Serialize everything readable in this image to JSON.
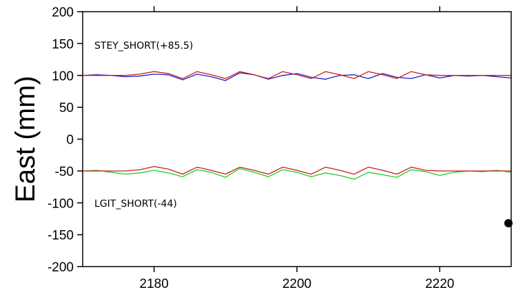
{
  "chart_data": {
    "type": "line",
    "title": "",
    "xlabel": "",
    "ylabel": "East (mm)",
    "xlim": [
      2170,
      2230
    ],
    "ylim": [
      -200,
      200
    ],
    "xticks": [
      2180,
      2200,
      2220
    ],
    "yticks": [
      200,
      150,
      100,
      50,
      0,
      -50,
      -100,
      -150,
      -200
    ],
    "grid": false,
    "annotations": [
      "STEY_SHORT(+85.5)",
      "LGIT_SHORT(-44)"
    ],
    "marker_point": {
      "x": 2230,
      "y": -132
    },
    "series": [
      {
        "color": "#1a1acc",
        "x": [
          2170,
          2172,
          2174,
          2176,
          2178,
          2180,
          2182,
          2184,
          2186,
          2188,
          2190,
          2192,
          2194,
          2196,
          2198,
          2200,
          2202,
          2204,
          2206,
          2208,
          2210,
          2212,
          2214,
          2216,
          2218,
          2220,
          2222,
          2224,
          2226,
          2228,
          2230
        ],
        "values": [
          100,
          101,
          100,
          98,
          99,
          102,
          101,
          93,
          102,
          98,
          92,
          104,
          101,
          94,
          100,
          103,
          97,
          94,
          100,
          101,
          95,
          103,
          97,
          95,
          101,
          96,
          100,
          99,
          100,
          98,
          96
        ]
      },
      {
        "color": "#cc1a1a",
        "x": [
          2170,
          2172,
          2174,
          2176,
          2178,
          2180,
          2182,
          2184,
          2186,
          2188,
          2190,
          2192,
          2194,
          2196,
          2198,
          2200,
          2202,
          2204,
          2206,
          2208,
          2210,
          2212,
          2214,
          2216,
          2218,
          2220,
          2222,
          2224,
          2226,
          2228,
          2230
        ],
        "values": [
          100,
          100,
          100,
          100,
          102,
          106,
          103,
          95,
          106,
          101,
          95,
          106,
          101,
          95,
          106,
          101,
          95,
          106,
          101,
          95,
          106,
          101,
          95,
          106,
          101,
          100,
          100,
          100,
          100,
          100,
          100
        ]
      },
      {
        "color": "#22cc22",
        "x": [
          2170,
          2172,
          2174,
          2176,
          2178,
          2180,
          2182,
          2184,
          2186,
          2188,
          2190,
          2192,
          2194,
          2196,
          2198,
          2200,
          2202,
          2204,
          2206,
          2208,
          2210,
          2212,
          2214,
          2216,
          2218,
          2220,
          2222,
          2224,
          2226,
          2228,
          2230
        ],
        "values": [
          -50,
          -49,
          -52,
          -55,
          -53,
          -49,
          -53,
          -59,
          -48,
          -52,
          -60,
          -46,
          -52,
          -59,
          -48,
          -52,
          -59,
          -53,
          -57,
          -63,
          -52,
          -56,
          -60,
          -48,
          -51,
          -57,
          -52,
          -50,
          -51,
          -49,
          -52
        ]
      },
      {
        "color": "#cc1a1a",
        "x": [
          2170,
          2172,
          2174,
          2176,
          2178,
          2180,
          2182,
          2184,
          2186,
          2188,
          2190,
          2192,
          2194,
          2196,
          2198,
          2200,
          2202,
          2204,
          2206,
          2208,
          2210,
          2212,
          2214,
          2216,
          2218,
          2220,
          2222,
          2224,
          2226,
          2228,
          2230
        ],
        "values": [
          -50,
          -50,
          -50,
          -50,
          -48,
          -43,
          -47,
          -55,
          -44,
          -49,
          -55,
          -44,
          -49,
          -55,
          -44,
          -49,
          -55,
          -44,
          -49,
          -55,
          -44,
          -49,
          -55,
          -44,
          -49,
          -50,
          -50,
          -50,
          -50,
          -50,
          -50
        ]
      }
    ]
  }
}
